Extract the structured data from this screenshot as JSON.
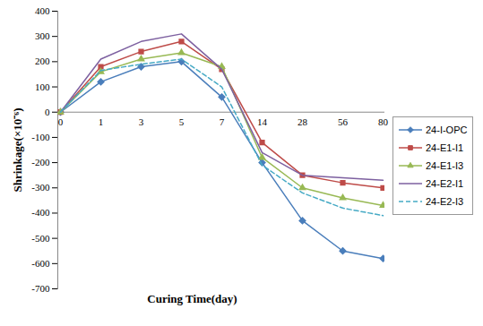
{
  "chart_data": {
    "type": "line",
    "x_label": "Curing Time(day)",
    "y_label": "Shrinkage(×10⁻⁶)",
    "categories": [
      "0",
      "1",
      "3",
      "5",
      "7",
      "14",
      "28",
      "56",
      "80"
    ],
    "ylim": [
      -700,
      400
    ],
    "yticks": [
      -700,
      -600,
      -500,
      -400,
      -300,
      -200,
      -100,
      0,
      100,
      200,
      300,
      400
    ],
    "grid": false,
    "legend": "right",
    "series": [
      {
        "name": "24-I-OPC",
        "color": "#4a7ebb",
        "marker": "diamond",
        "line_style": "solid",
        "values": [
          0,
          120,
          180,
          200,
          60,
          -200,
          -430,
          -550,
          -580
        ]
      },
      {
        "name": "24-E1-I1",
        "color": "#be4b48",
        "marker": "square",
        "line_style": "solid",
        "values": [
          0,
          180,
          240,
          280,
          170,
          -120,
          -250,
          -280,
          -300
        ]
      },
      {
        "name": "24-E1-I3",
        "color": "#98b954",
        "marker": "triangle",
        "line_style": "solid",
        "values": [
          0,
          160,
          210,
          235,
          180,
          -180,
          -300,
          -340,
          -370
        ]
      },
      {
        "name": "24-E2-I1",
        "color": "#7d60a0",
        "marker": "none",
        "line_style": "solid",
        "values": [
          0,
          210,
          280,
          310,
          170,
          -160,
          -250,
          -260,
          -270
        ]
      },
      {
        "name": "24-E2-I3",
        "color": "#46aac5",
        "marker": "none",
        "line_style": "dashed",
        "values": [
          0,
          165,
          190,
          210,
          100,
          -210,
          -320,
          -380,
          -410
        ]
      }
    ]
  }
}
